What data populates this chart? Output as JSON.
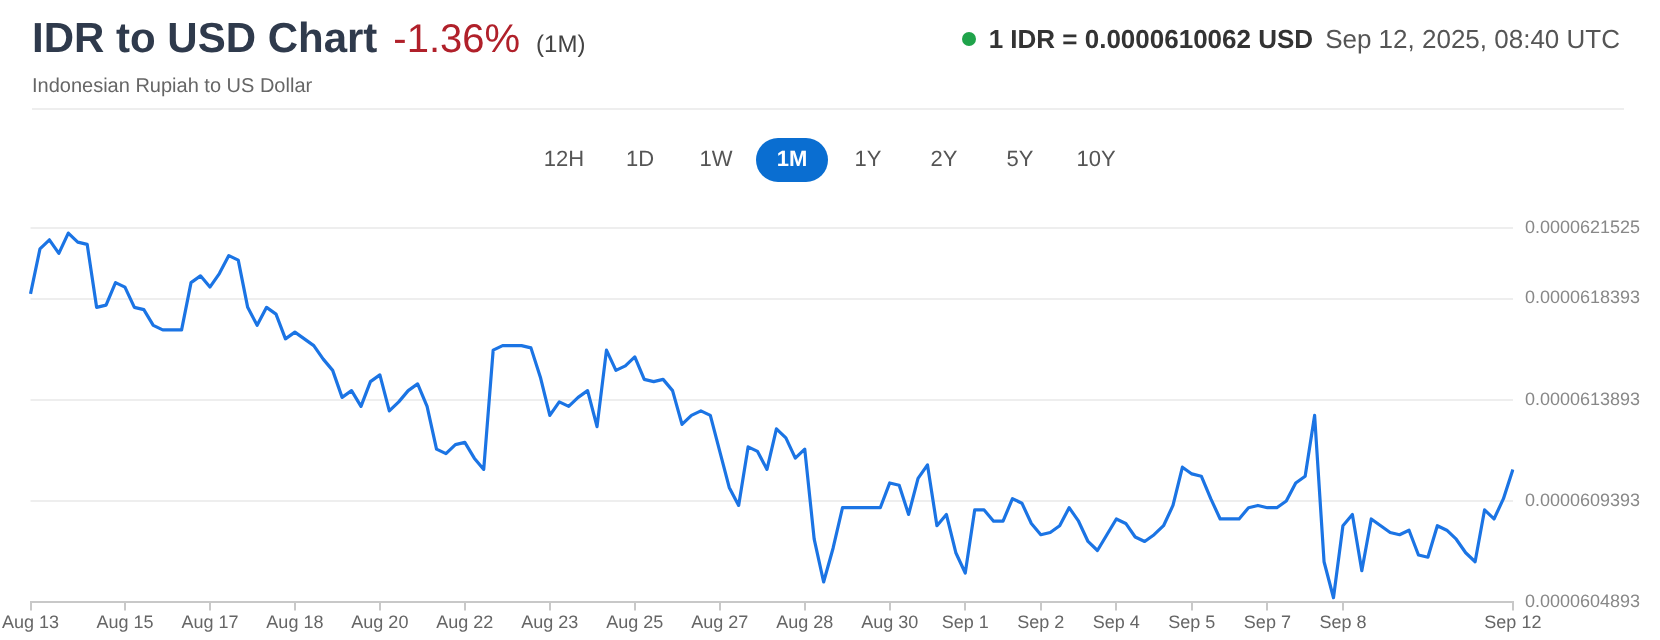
{
  "chart_data": {
    "type": "line",
    "title": "IDR to USD Chart",
    "subtitle": "Indonesian Rupiah to US Dollar",
    "annotations": [
      "-1.36%",
      "(1M)",
      "1 IDR = 0.0000610062 USD",
      "Sep 12, 2025, 08:40 UTC",
      "12H",
      "1D",
      "1W",
      "1M",
      "1Y",
      "2Y",
      "5Y",
      "10Y"
    ],
    "categories": [
      "Aug 13",
      null,
      null,
      null,
      null,
      null,
      null,
      null,
      null,
      null,
      "Aug 15",
      null,
      null,
      null,
      null,
      null,
      null,
      null,
      null,
      "Aug 17",
      null,
      null,
      null,
      null,
      null,
      null,
      null,
      null,
      "Aug 18",
      null,
      null,
      null,
      null,
      null,
      null,
      null,
      null,
      "Aug 20",
      null,
      null,
      null,
      null,
      null,
      null,
      null,
      null,
      "Aug 22",
      null,
      null,
      null,
      null,
      null,
      null,
      null,
      null,
      "Aug 23",
      null,
      null,
      null,
      null,
      null,
      null,
      null,
      null,
      "Aug 25",
      null,
      null,
      null,
      null,
      null,
      null,
      null,
      null,
      "Aug 27",
      null,
      null,
      null,
      null,
      null,
      null,
      null,
      null,
      "Aug 28",
      null,
      null,
      null,
      null,
      null,
      null,
      null,
      null,
      "Aug 30",
      null,
      null,
      null,
      null,
      null,
      null,
      null,
      "Sep 1",
      null,
      null,
      null,
      null,
      null,
      null,
      null,
      "Sep 2",
      null,
      null,
      null,
      null,
      null,
      null,
      null,
      "Sep 4",
      null,
      null,
      null,
      null,
      null,
      null,
      null,
      "Sep 5",
      null,
      null,
      null,
      null,
      null,
      null,
      null,
      "Sep 7",
      null,
      null,
      null,
      null,
      null,
      null,
      null,
      "Sep 8",
      null,
      null,
      null,
      null,
      null,
      null,
      null,
      null,
      null,
      null,
      null,
      null,
      null,
      null,
      null,
      null,
      null,
      "Sep 12"
    ],
    "values": [
      6.186e-05,
      6.206e-05,
      6.21e-05,
      6.204e-05,
      6.213e-05,
      6.209e-05,
      6.208e-05,
      6.18e-05,
      6.181e-05,
      6.191e-05,
      6.189e-05,
      6.18e-05,
      6.179e-05,
      6.172e-05,
      6.17e-05,
      6.17e-05,
      6.17e-05,
      6.191e-05,
      6.194e-05,
      6.189e-05,
      6.195e-05,
      6.203e-05,
      6.201e-05,
      6.18e-05,
      6.172e-05,
      6.18e-05,
      6.177e-05,
      6.166e-05,
      6.169e-05,
      6.166e-05,
      6.163e-05,
      6.157e-05,
      6.152e-05,
      6.14e-05,
      6.143e-05,
      6.136e-05,
      6.147e-05,
      6.15e-05,
      6.134e-05,
      6.138e-05,
      6.143e-05,
      6.146e-05,
      6.136e-05,
      6.117e-05,
      6.115e-05,
      6.119e-05,
      6.12e-05,
      6.113e-05,
      6.108e-05,
      6.161e-05,
      6.163e-05,
      6.163e-05,
      6.163e-05,
      6.162e-05,
      6.149e-05,
      6.132e-05,
      6.138e-05,
      6.136e-05,
      6.14e-05,
      6.143e-05,
      6.127e-05,
      6.161e-05,
      6.152e-05,
      6.154e-05,
      6.158e-05,
      6.148e-05,
      6.147e-05,
      6.148e-05,
      6.143e-05,
      6.128e-05,
      6.132e-05,
      6.134e-05,
      6.132e-05,
      6.116e-05,
      6.1e-05,
      6.092e-05,
      6.118e-05,
      6.116e-05,
      6.108e-05,
      6.126e-05,
      6.122e-05,
      6.113e-05,
      6.117e-05,
      6.077e-05,
      6.058e-05,
      6.073e-05,
      6.091e-05,
      6.091e-05,
      6.091e-05,
      6.091e-05,
      6.091e-05,
      6.102e-05,
      6.101e-05,
      6.088e-05,
      6.104e-05,
      6.11e-05,
      6.083e-05,
      6.088e-05,
      6.071e-05,
      6.062e-05,
      6.09e-05,
      6.09e-05,
      6.085e-05,
      6.085e-05,
      6.095e-05,
      6.093e-05,
      6.084e-05,
      6.079e-05,
      6.08e-05,
      6.083e-05,
      6.091e-05,
      6.085e-05,
      6.076e-05,
      6.072e-05,
      6.079e-05,
      6.086e-05,
      6.084e-05,
      6.078e-05,
      6.076e-05,
      6.079e-05,
      6.083e-05,
      6.092e-05,
      6.109e-05,
      6.106e-05,
      6.105e-05,
      6.095e-05,
      6.086e-05,
      6.086e-05,
      6.086e-05,
      6.091e-05,
      6.092e-05,
      6.091e-05,
      6.091e-05,
      6.094e-05,
      6.102e-05,
      6.105e-05,
      6.132e-05,
      6.067e-05,
      6.051e-05,
      6.083e-05,
      6.088e-05,
      6.063e-05,
      6.086e-05,
      6.083e-05,
      6.08e-05,
      6.079e-05,
      6.081e-05,
      6.07e-05,
      6.069e-05,
      6.083e-05,
      6.081e-05,
      6.077e-05,
      6.071e-05,
      6.067e-05,
      6.09e-05,
      6.086e-05,
      6.095e-05,
      6.108e-05
    ],
    "color": "#1b74e4",
    "ylim": [
      6.04893e-05,
      6.21525e-05
    ],
    "yticks": [
      {
        "value": 6.04893e-05,
        "label": "0.0000604893"
      },
      {
        "value": 6.09393e-05,
        "label": "0.0000609393"
      },
      {
        "value": 6.13893e-05,
        "label": "0.0000613893"
      },
      {
        "value": 6.18393e-05,
        "label": "0.0000618393"
      },
      {
        "value": 6.21525e-05,
        "label": "0.0000621525"
      }
    ],
    "grid": "y"
  }
}
